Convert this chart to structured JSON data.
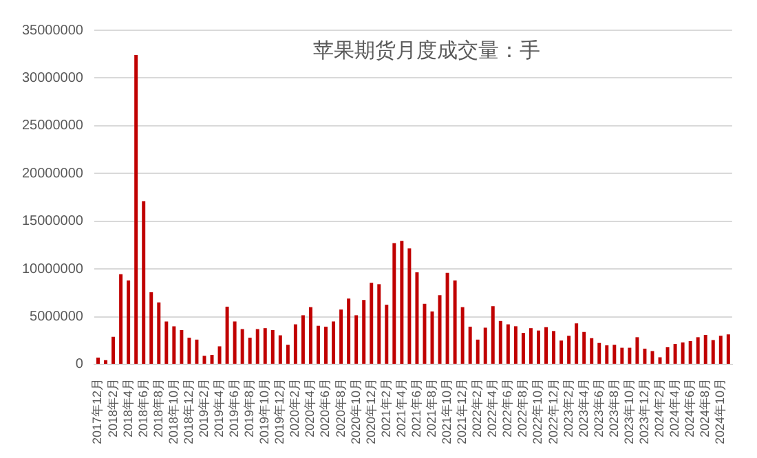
{
  "chart_data": {
    "type": "bar",
    "title": "苹果期货月度成交量：手",
    "categories": [
      "2017年12月",
      null,
      "2018年2月",
      null,
      "2018年4月",
      null,
      "2018年6月",
      null,
      "2018年8月",
      null,
      "2018年10月",
      null,
      "2018年12月",
      null,
      "2019年2月",
      null,
      "2019年4月",
      null,
      "2019年6月",
      null,
      "2019年8月",
      null,
      "2019年10月",
      null,
      "2019年12月",
      null,
      "2020年2月",
      null,
      "2020年4月",
      null,
      "2020年6月",
      null,
      "2020年8月",
      null,
      "2020年10月",
      null,
      "2020年12月",
      null,
      "2021年2月",
      null,
      "2021年4月",
      null,
      "2021年6月",
      null,
      "2021年8月",
      null,
      "2021年10月",
      null,
      "2021年12月",
      null,
      "2022年2月",
      null,
      "2022年4月",
      null,
      "2022年6月",
      null,
      "2022年8月",
      null,
      "2022年10月",
      null,
      "2022年12月",
      null,
      "2023年2月",
      null,
      "2023年4月",
      null,
      "2023年6月",
      null,
      "2023年8月",
      null,
      "2023年10月",
      null,
      "2023年12月",
      null,
      "2024年2月",
      null,
      "2024年4月",
      null,
      "2024年6月",
      null,
      "2024年8月",
      null,
      "2024年10月",
      null
    ],
    "values": [
      720000,
      450000,
      2900000,
      9450000,
      8800000,
      32400000,
      17100000,
      7550000,
      6500000,
      4500000,
      4000000,
      3600000,
      2800000,
      2600000,
      900000,
      1000000,
      1900000,
      6050000,
      4500000,
      3700000,
      2800000,
      3700000,
      3800000,
      3600000,
      3050000,
      2050000,
      4200000,
      5150000,
      6000000,
      4050000,
      3950000,
      4500000,
      5750000,
      6900000,
      5150000,
      6750000,
      8550000,
      8400000,
      6250000,
      12700000,
      12950000,
      12150000,
      9650000,
      6350000,
      5550000,
      7250000,
      9600000,
      8800000,
      6000000,
      3950000,
      2600000,
      3850000,
      6100000,
      4550000,
      4200000,
      4000000,
      3300000,
      3800000,
      3550000,
      3900000,
      3500000,
      2500000,
      3000000,
      4300000,
      3400000,
      2750000,
      2250000,
      2000000,
      2050000,
      1750000,
      1750000,
      2850000,
      1650000,
      1400000,
      750000,
      1800000,
      2150000,
      2300000,
      2450000,
      2850000,
      3100000,
      2550000,
      3000000,
      3150000
    ],
    "color": "#c00000",
    "ylim": [
      0,
      35000000
    ],
    "yticks": [
      0,
      5000000,
      10000000,
      15000000,
      20000000,
      25000000,
      30000000,
      35000000
    ],
    "grid": "y",
    "legend": false
  }
}
